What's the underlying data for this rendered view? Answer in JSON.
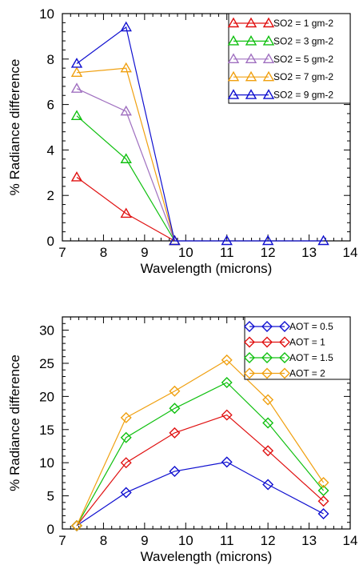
{
  "chart_data": [
    {
      "type": "line",
      "title": "",
      "xlabel": "Wavelength (microns)",
      "ylabel": "% Radiance difference",
      "xlim": [
        7,
        14
      ],
      "ylim": [
        0,
        10
      ],
      "xticks": [
        7,
        8,
        9,
        10,
        11,
        12,
        13,
        14
      ],
      "yticks": [
        0,
        2,
        4,
        6,
        8,
        10
      ],
      "marker": "triangle",
      "legend_position": "top-right",
      "grid": false,
      "series": [
        {
          "name": "SO2 = 1 gm-2",
          "color": "#e01010",
          "x": [
            7.35,
            8.55,
            9.73
          ],
          "y": [
            2.8,
            1.2,
            0.0
          ]
        },
        {
          "name": "SO2 = 3 gm-2",
          "color": "#10c010",
          "x": [
            7.35,
            8.55,
            9.73
          ],
          "y": [
            5.5,
            3.6,
            0.0
          ]
        },
        {
          "name": "SO2 = 5 gm-2",
          "color": "#a070c0",
          "x": [
            7.35,
            8.55,
            9.73
          ],
          "y": [
            6.7,
            5.7,
            0.0
          ]
        },
        {
          "name": "SO2 = 7 gm-2",
          "color": "#f0a010",
          "x": [
            7.35,
            8.55,
            9.73
          ],
          "y": [
            7.4,
            7.6,
            0.0
          ]
        },
        {
          "name": "SO2 = 9 gm-2",
          "color": "#1010d0",
          "x": [
            7.35,
            8.55,
            9.73,
            11.0,
            12.0,
            13.35
          ],
          "y": [
            7.8,
            9.4,
            0.0,
            0.0,
            0.0,
            0.0
          ]
        }
      ]
    },
    {
      "type": "line",
      "title": "",
      "xlabel": "Wavelength (microns)",
      "ylabel": "% Radiance difference",
      "xlim": [
        7,
        14
      ],
      "ylim": [
        0,
        32
      ],
      "xticks": [
        7,
        8,
        9,
        10,
        11,
        12,
        13,
        14
      ],
      "yticks": [
        0,
        5,
        10,
        15,
        20,
        25,
        30
      ],
      "marker": "diamond",
      "legend_position": "top-right",
      "grid": false,
      "series": [
        {
          "name": "AOT = 0.5",
          "color": "#1010d0",
          "x": [
            7.35,
            8.55,
            9.73,
            11.0,
            12.0,
            13.35
          ],
          "y": [
            0.5,
            5.5,
            8.7,
            10.1,
            6.7,
            2.3
          ]
        },
        {
          "name": "AOT = 1",
          "color": "#e01010",
          "x": [
            7.35,
            8.55,
            9.73,
            11.0,
            12.0,
            13.35
          ],
          "y": [
            0.5,
            10.0,
            14.5,
            17.2,
            11.8,
            4.2
          ]
        },
        {
          "name": "AOT = 1.5",
          "color": "#10c010",
          "x": [
            7.35,
            8.55,
            9.73,
            11.0,
            12.0,
            13.35
          ],
          "y": [
            0.5,
            13.8,
            18.2,
            22.1,
            16.0,
            5.8
          ]
        },
        {
          "name": "AOT = 2",
          "color": "#f0a010",
          "x": [
            7.35,
            8.55,
            9.73,
            11.0,
            12.0,
            13.35
          ],
          "y": [
            0.5,
            16.8,
            20.8,
            25.5,
            19.5,
            7.0
          ]
        }
      ]
    }
  ]
}
